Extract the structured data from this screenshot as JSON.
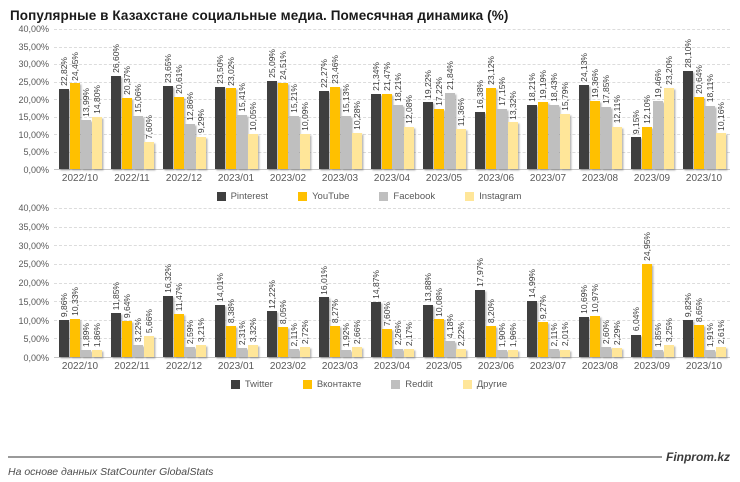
{
  "title": "Популярные в Казахстане социальные медиа. Помесячная динамика (%)",
  "footer": {
    "source": "На основе данных StatCounter GlobalStats",
    "brand": "Finprom.kz"
  },
  "colors": {
    "series1": "#3f3f3f",
    "series2": "#ffc000",
    "series3": "#bfbfbf",
    "series4": "#ffe699",
    "grid": "#dcdcdc",
    "axis_text": "#595959"
  },
  "chart_data": [
    {
      "type": "bar",
      "title": "",
      "categories": [
        "2022/10",
        "2022/11",
        "2022/12",
        "2023/01",
        "2023/02",
        "2023/03",
        "2023/04",
        "2023/05",
        "2023/06",
        "2023/07",
        "2023/08",
        "2023/09",
        "2023/10"
      ],
      "series": [
        {
          "name": "Pinterest",
          "color": "#3f3f3f",
          "values": [
            22.82,
            26.6,
            23.65,
            23.5,
            25.09,
            22.27,
            21.34,
            19.22,
            16.38,
            18.21,
            24.13,
            9.15,
            28.1
          ]
        },
        {
          "name": "YouTube",
          "color": "#ffc000",
          "values": [
            24.45,
            20.37,
            20.61,
            23.02,
            24.51,
            23.46,
            21.47,
            17.22,
            23.12,
            19.19,
            19.36,
            12.1,
            20.64
          ]
        },
        {
          "name": "Facebook",
          "color": "#bfbfbf",
          "values": [
            13.99,
            15.06,
            12.86,
            15.41,
            15.21,
            15.13,
            18.21,
            21.84,
            17.15,
            18.43,
            17.85,
            19.46,
            18.11
          ]
        },
        {
          "name": "Instagram",
          "color": "#ffe699",
          "values": [
            14.8,
            7.6,
            9.29,
            10.05,
            10.09,
            10.28,
            12.08,
            11.36,
            13.32,
            15.79,
            12.11,
            23.2,
            10.16
          ]
        }
      ],
      "ylim": [
        0,
        40
      ],
      "ytick_step": 5,
      "ytick_labels": [
        "40,00%",
        "35,00%",
        "30,00%",
        "25,00%",
        "20,00%",
        "15,00%",
        "10,00%",
        "5,00%",
        "0,00%"
      ],
      "value_label_format": "ru-decimal-comma-percent",
      "grid": true,
      "legend_position": "bottom"
    },
    {
      "type": "bar",
      "title": "",
      "categories": [
        "2022/10",
        "2022/11",
        "2022/12",
        "2023/01",
        "2023/02",
        "2023/03",
        "2023/04",
        "2023/05",
        "2023/06",
        "2023/07",
        "2023/08",
        "2023/09",
        "2023/10"
      ],
      "series": [
        {
          "name": "Twitter",
          "color": "#3f3f3f",
          "values": [
            9.86,
            11.85,
            16.32,
            14.01,
            12.22,
            16.01,
            14.87,
            13.88,
            17.97,
            14.99,
            10.69,
            6.04,
            9.82
          ]
        },
        {
          "name": "Вконтакте",
          "color": "#ffc000",
          "values": [
            10.33,
            9.64,
            11.47,
            8.38,
            8.05,
            8.27,
            7.6,
            10.08,
            8.2,
            9.27,
            10.97,
            24.95,
            8.65
          ]
        },
        {
          "name": "Reddit",
          "color": "#bfbfbf",
          "values": [
            1.89,
            3.22,
            2.59,
            2.31,
            2.11,
            1.92,
            2.26,
            4.18,
            1.9,
            2.11,
            2.6,
            1.85,
            1.91
          ]
        },
        {
          "name": "Другие",
          "color": "#ffe699",
          "values": [
            1.86,
            5.66,
            3.21,
            3.32,
            2.72,
            2.66,
            2.17,
            2.22,
            1.96,
            2.01,
            2.29,
            3.25,
            2.61
          ]
        }
      ],
      "ylim": [
        0,
        40
      ],
      "ytick_step": 5,
      "ytick_labels": [
        "40,00%",
        "35,00%",
        "30,00%",
        "25,00%",
        "20,00%",
        "15,00%",
        "10,00%",
        "5,00%",
        "0,00%"
      ],
      "value_label_format": "ru-decimal-comma-percent",
      "grid": true,
      "legend_position": "bottom"
    }
  ]
}
